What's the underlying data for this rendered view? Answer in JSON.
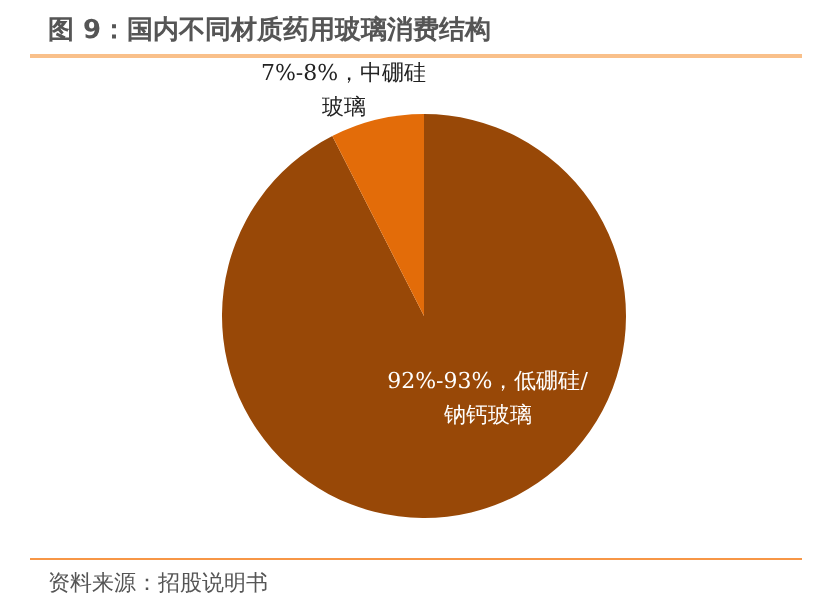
{
  "chart_data": {
    "type": "pie",
    "title": "图 9：国内不同材质药用玻璃消费结构",
    "categories": [
      "低硼硅/钠钙玻璃",
      "中硼硅玻璃"
    ],
    "values": [
      92.5,
      7.5
    ],
    "value_labels": [
      "92%-93%",
      "7%-8%"
    ],
    "colors": [
      "#984807",
      "#e36c09"
    ],
    "annotations": [
      "资料来源：招股说明书"
    ]
  }
}
